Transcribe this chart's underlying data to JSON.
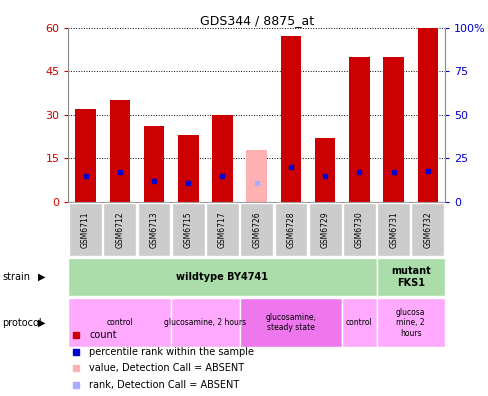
{
  "title": "GDS344 / 8875_at",
  "samples": [
    "GSM6711",
    "GSM6712",
    "GSM6713",
    "GSM6715",
    "GSM6717",
    "GSM6726",
    "GSM6728",
    "GSM6729",
    "GSM6730",
    "GSM6731",
    "GSM6732"
  ],
  "count_values": [
    32,
    35,
    26,
    23,
    30,
    0,
    57,
    22,
    50,
    50,
    60
  ],
  "percentile_values": [
    15,
    17,
    12,
    11,
    15,
    0,
    20,
    15,
    17,
    17,
    18
  ],
  "absent_count": [
    0,
    0,
    0,
    0,
    0,
    18,
    0,
    0,
    0,
    0,
    0
  ],
  "absent_rank": [
    0,
    0,
    0,
    0,
    0,
    11,
    0,
    0,
    0,
    0,
    0
  ],
  "ylim_left": [
    0,
    60
  ],
  "ylim_right": [
    0,
    100
  ],
  "yticks_left": [
    0,
    15,
    30,
    45,
    60
  ],
  "yticks_right": [
    0,
    25,
    50,
    75,
    100
  ],
  "yticklabels_right": [
    "0",
    "25",
    "50",
    "75",
    "100%"
  ],
  "bar_color": "#cc0000",
  "absent_bar_color": "#ffb0b0",
  "rank_color": "#0000cc",
  "absent_rank_color": "#aaaaff",
  "strain_groups": [
    {
      "label": "wildtype BY4741",
      "start": 0,
      "end": 9,
      "color": "#aaddaa"
    },
    {
      "label": "mutant\nFKS1",
      "start": 9,
      "end": 11,
      "color": "#aaddaa"
    }
  ],
  "protocol_groups": [
    {
      "label": "control",
      "start": 0,
      "end": 3,
      "color": "#ffaaff"
    },
    {
      "label": "glucosamine, 2 hours",
      "start": 3,
      "end": 5,
      "color": "#ffaaff"
    },
    {
      "label": "glucosamine,\nsteady state",
      "start": 5,
      "end": 8,
      "color": "#ee77ee"
    },
    {
      "label": "control",
      "start": 8,
      "end": 9,
      "color": "#ffaaff"
    },
    {
      "label": "glucosa\nmine, 2\nhours",
      "start": 9,
      "end": 11,
      "color": "#ffaaff"
    }
  ],
  "legend_items": [
    {
      "color": "#cc0000",
      "label": "count"
    },
    {
      "color": "#0000cc",
      "label": "percentile rank within the sample"
    },
    {
      "color": "#ffb0b0",
      "label": "value, Detection Call = ABSENT"
    },
    {
      "color": "#aaaaff",
      "label": "rank, Detection Call = ABSENT"
    }
  ],
  "background_color": "#ffffff",
  "tick_label_color_left": "#cc0000",
  "tick_label_color_right": "#0000cc",
  "sample_box_color": "#cccccc",
  "sample_box_edge": "#ffffff"
}
